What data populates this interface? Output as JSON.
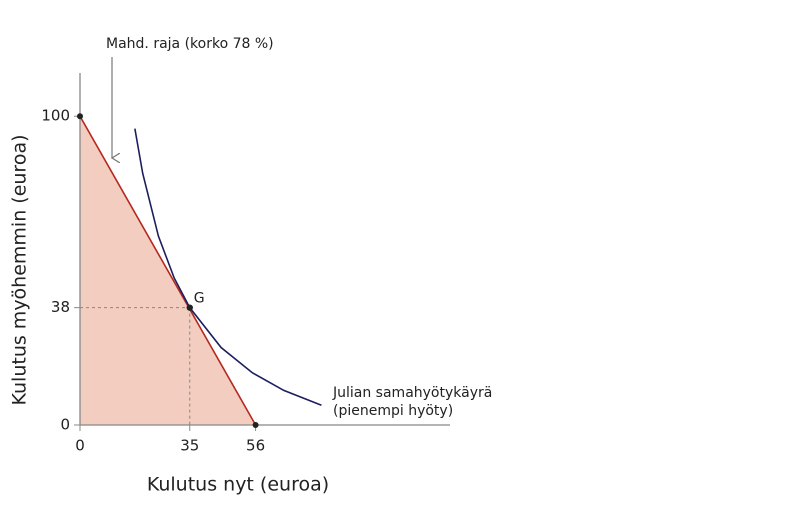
{
  "chart_data": {
    "type": "line",
    "xlabel": "Kulutus nyt (euroa)",
    "ylabel": "Kulutus myöhemmin (euroa)",
    "xlim": [
      0,
      118
    ],
    "ylim": [
      0,
      114
    ],
    "xticks": [
      0,
      35,
      56
    ],
    "yticks": [
      0,
      38,
      100
    ],
    "area_color": "#f3cdbf",
    "series": [
      {
        "name": "Mahd. raja (korko 78 %)",
        "color": "#b5281e",
        "x": [
          0,
          56
        ],
        "values": [
          100,
          0
        ]
      },
      {
        "name": "Julian samahyötykäyrä",
        "note": "(pienempi hyöty)",
        "color": "#1c1f5e",
        "x": [
          17.5,
          20,
          25,
          30,
          35,
          45,
          55,
          65,
          77
        ],
        "values": [
          96,
          81.5,
          61.2,
          47.7,
          38,
          25.1,
          16.9,
          11.2,
          6.4
        ]
      }
    ],
    "points": [
      {
        "label": "G",
        "x": 35,
        "y": 38
      }
    ]
  }
}
